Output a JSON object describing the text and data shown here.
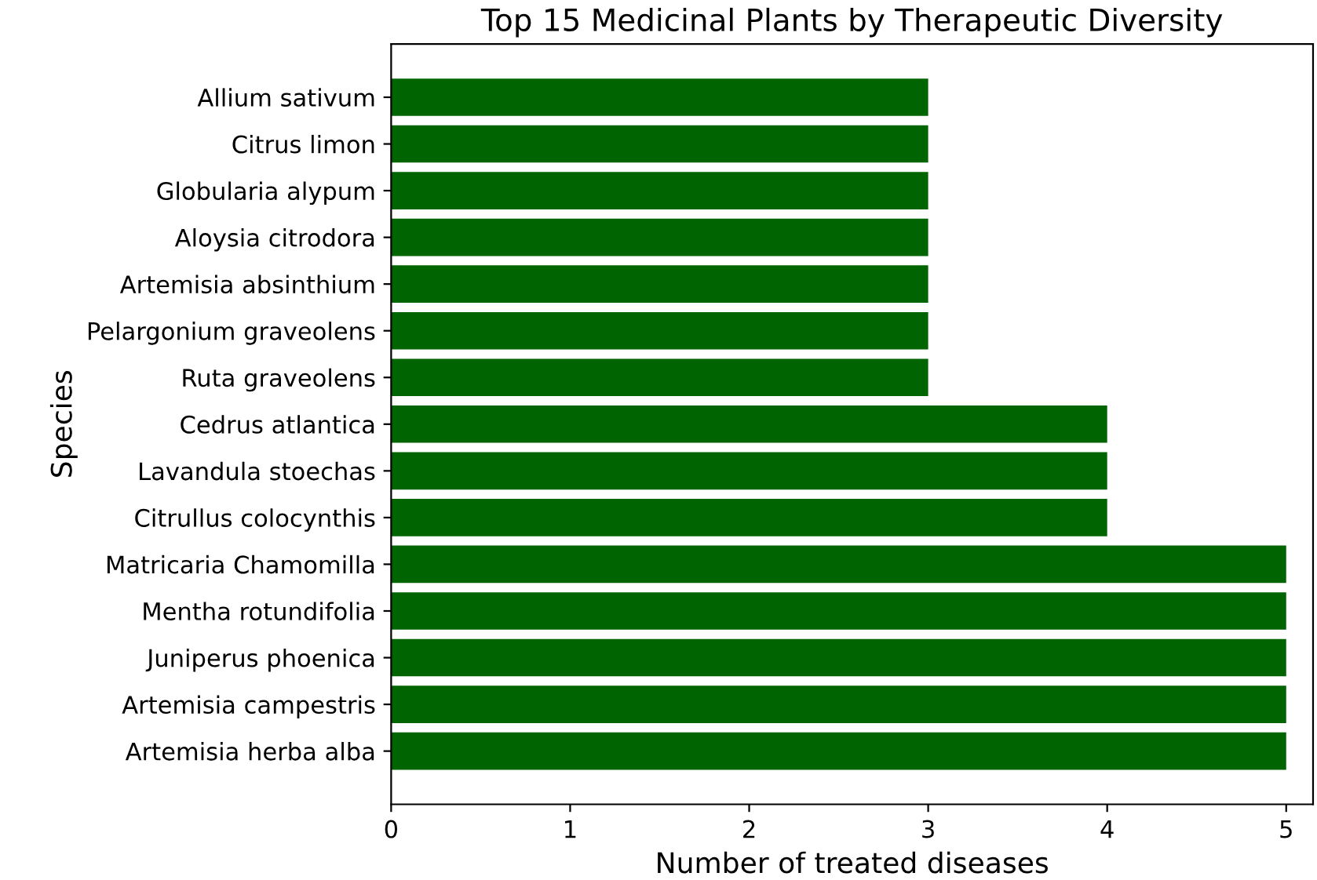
{
  "chart_data": {
    "type": "bar",
    "orientation": "horizontal",
    "title": "Top 15 Medicinal Plants by Therapeutic Diversity",
    "xlabel": "Number of treated diseases",
    "ylabel": "Species",
    "categories": [
      "Allium sativum",
      "Citrus limon",
      "Globularia alypum",
      "Aloysia citrodora",
      "Artemisia absinthium",
      "Pelargonium graveolens",
      "Ruta graveolens",
      "Cedrus atlantica",
      "Lavandula stoechas",
      "Citrullus colocynthis",
      "Matricaria Chamomilla",
      "Mentha rotundifolia",
      "Juniperus phoenica",
      "Artemisia campestris",
      "Artemisia herba alba"
    ],
    "values": [
      3,
      3,
      3,
      3,
      3,
      3,
      3,
      4,
      4,
      4,
      5,
      5,
      5,
      5,
      5
    ],
    "color": "#006400",
    "xlim": [
      0,
      5.15
    ],
    "xticks": [
      0,
      1,
      2,
      3,
      4,
      5
    ],
    "grid": false,
    "legend": false
  }
}
